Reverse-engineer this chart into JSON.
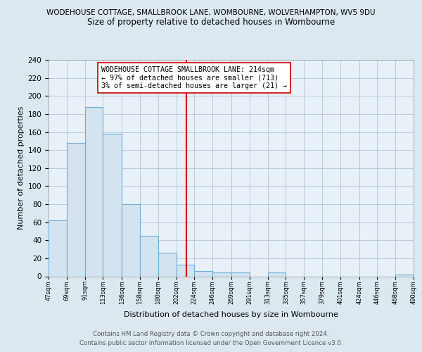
{
  "title_top": "WODEHOUSE COTTAGE, SMALLBROOK LANE, WOMBOURNE, WOLVERHAMPTON, WV5 9DU",
  "title_main": "Size of property relative to detached houses in Wombourne",
  "xlabel": "Distribution of detached houses by size in Wombourne",
  "ylabel": "Number of detached properties",
  "bin_edges": [
    47,
    69,
    91,
    113,
    136,
    158,
    180,
    202,
    224,
    246,
    269,
    291,
    313,
    335,
    357,
    379,
    401,
    424,
    446,
    468,
    490
  ],
  "bar_heights": [
    62,
    148,
    188,
    158,
    80,
    45,
    26,
    13,
    6,
    4,
    4,
    0,
    4,
    0,
    0,
    0,
    0,
    0,
    0,
    2
  ],
  "bar_color": "#d4e3f0",
  "bar_edge_color": "#6baed6",
  "vline_x": 214,
  "vline_color": "#cc0000",
  "annotation_title": "WODEHOUSE COTTAGE SMALLBROOK LANE: 214sqm",
  "annotation_line1": "← 97% of detached houses are smaller (713)",
  "annotation_line2": "3% of semi-detached houses are larger (21) →",
  "annotation_box_color": "#ffffff",
  "annotation_box_edge": "#cc0000",
  "ylim": [
    0,
    240
  ],
  "yticks": [
    0,
    20,
    40,
    60,
    80,
    100,
    120,
    140,
    160,
    180,
    200,
    220,
    240
  ],
  "tick_labels": [
    "47sqm",
    "69sqm",
    "91sqm",
    "113sqm",
    "136sqm",
    "158sqm",
    "180sqm",
    "202sqm",
    "224sqm",
    "246sqm",
    "269sqm",
    "291sqm",
    "313sqm",
    "335sqm",
    "357sqm",
    "379sqm",
    "401sqm",
    "424sqm",
    "446sqm",
    "468sqm",
    "490sqm"
  ],
  "footer_line1": "Contains HM Land Registry data © Crown copyright and database right 2024.",
  "footer_line2": "Contains public sector information licensed under the Open Government Licence v3.0.",
  "background_color": "#dce8f0",
  "plot_bg_color": "#e8f0f8"
}
